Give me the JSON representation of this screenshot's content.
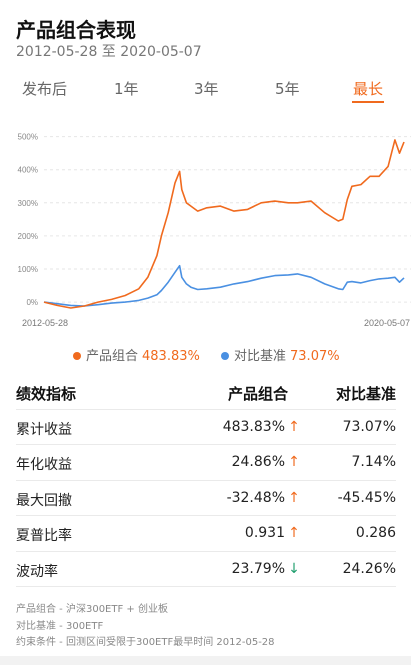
{
  "header": {
    "title": "产品组合表现",
    "date_range": "2012-05-28 至 2020-05-07"
  },
  "tabs": [
    {
      "label": "发布后",
      "active": false
    },
    {
      "label": "1年",
      "active": false
    },
    {
      "label": "3年",
      "active": false
    },
    {
      "label": "5年",
      "active": false
    },
    {
      "label": "最长",
      "active": true
    }
  ],
  "colors": {
    "portfolio": "#F06A1E",
    "benchmark": "#4A90E2",
    "up": "#F06A1E",
    "down": "#1F9E6D",
    "accent": "#F06A1E"
  },
  "chart_data": {
    "type": "line",
    "x_start_label": "2012-05-28",
    "x_end_label": "2020-05-07",
    "yticks": [
      "500%",
      "400%",
      "300%",
      "200%",
      "100%",
      "0%"
    ],
    "ytick_values": [
      500,
      400,
      300,
      200,
      100,
      0
    ],
    "ylim": [
      -30,
      520
    ],
    "grid": true,
    "series": [
      {
        "name": "产品组合",
        "color": "#F06A1E",
        "x": [
          2012.41,
          2012.7,
          2013.0,
          2013.3,
          2013.6,
          2013.9,
          2014.2,
          2014.5,
          2014.7,
          2014.9,
          2015.0,
          2015.15,
          2015.3,
          2015.4,
          2015.45,
          2015.55,
          2015.65,
          2015.8,
          2016.0,
          2016.3,
          2016.6,
          2016.9,
          2017.2,
          2017.5,
          2017.8,
          2018.0,
          2018.3,
          2018.6,
          2018.9,
          2019.0,
          2019.1,
          2019.2,
          2019.4,
          2019.6,
          2019.8,
          2020.0,
          2020.15,
          2020.25,
          2020.35
        ],
        "values": [
          0,
          -10,
          -18,
          -12,
          0,
          8,
          20,
          40,
          75,
          140,
          200,
          270,
          360,
          395,
          340,
          300,
          290,
          275,
          285,
          290,
          275,
          280,
          300,
          305,
          300,
          300,
          305,
          270,
          245,
          250,
          310,
          350,
          355,
          380,
          380,
          410,
          490,
          450,
          483.83
        ]
      },
      {
        "name": "对比基准",
        "color": "#4A90E2",
        "x": [
          2012.41,
          2012.7,
          2013.0,
          2013.3,
          2013.6,
          2013.9,
          2014.2,
          2014.5,
          2014.7,
          2014.9,
          2015.0,
          2015.15,
          2015.3,
          2015.4,
          2015.45,
          2015.55,
          2015.65,
          2015.8,
          2016.0,
          2016.3,
          2016.6,
          2016.9,
          2017.2,
          2017.5,
          2017.8,
          2018.0,
          2018.3,
          2018.6,
          2018.9,
          2019.0,
          2019.1,
          2019.2,
          2019.4,
          2019.6,
          2019.8,
          2020.0,
          2020.15,
          2020.25,
          2020.35
        ],
        "values": [
          0,
          -5,
          -10,
          -12,
          -8,
          -3,
          0,
          5,
          12,
          22,
          35,
          60,
          90,
          110,
          75,
          55,
          45,
          38,
          40,
          45,
          55,
          62,
          72,
          80,
          82,
          85,
          75,
          55,
          40,
          38,
          60,
          62,
          58,
          65,
          70,
          72,
          75,
          60,
          73.07
        ]
      }
    ]
  },
  "legend": [
    {
      "name": "产品组合",
      "value": "483.83%"
    },
    {
      "name": "对比基准",
      "value": "73.07%"
    }
  ],
  "table": {
    "headers": [
      "绩效指标",
      "产品组合",
      "对比基准"
    ],
    "rows": [
      {
        "metric": "累计收益",
        "portfolio": "483.83%",
        "arrow": "↑",
        "dir": "up",
        "benchmark": "73.07%"
      },
      {
        "metric": "年化收益",
        "portfolio": "24.86%",
        "arrow": "↑",
        "dir": "up",
        "benchmark": "7.14%"
      },
      {
        "metric": "最大回撤",
        "portfolio": "-32.48%",
        "arrow": "↑",
        "dir": "up",
        "benchmark": "-45.45%"
      },
      {
        "metric": "夏普比率",
        "portfolio": "0.931",
        "arrow": "↑",
        "dir": "up",
        "benchmark": "0.286"
      },
      {
        "metric": "波动率",
        "portfolio": "23.79%",
        "arrow": "↓",
        "dir": "down",
        "benchmark": "24.26%"
      }
    ]
  },
  "notes": [
    "产品组合 - 沪深300ETF + 创业板",
    "对比基准 - 300ETF",
    "约束条件 - 回测区间受限于300ETF最早时间 2012-05-28"
  ]
}
